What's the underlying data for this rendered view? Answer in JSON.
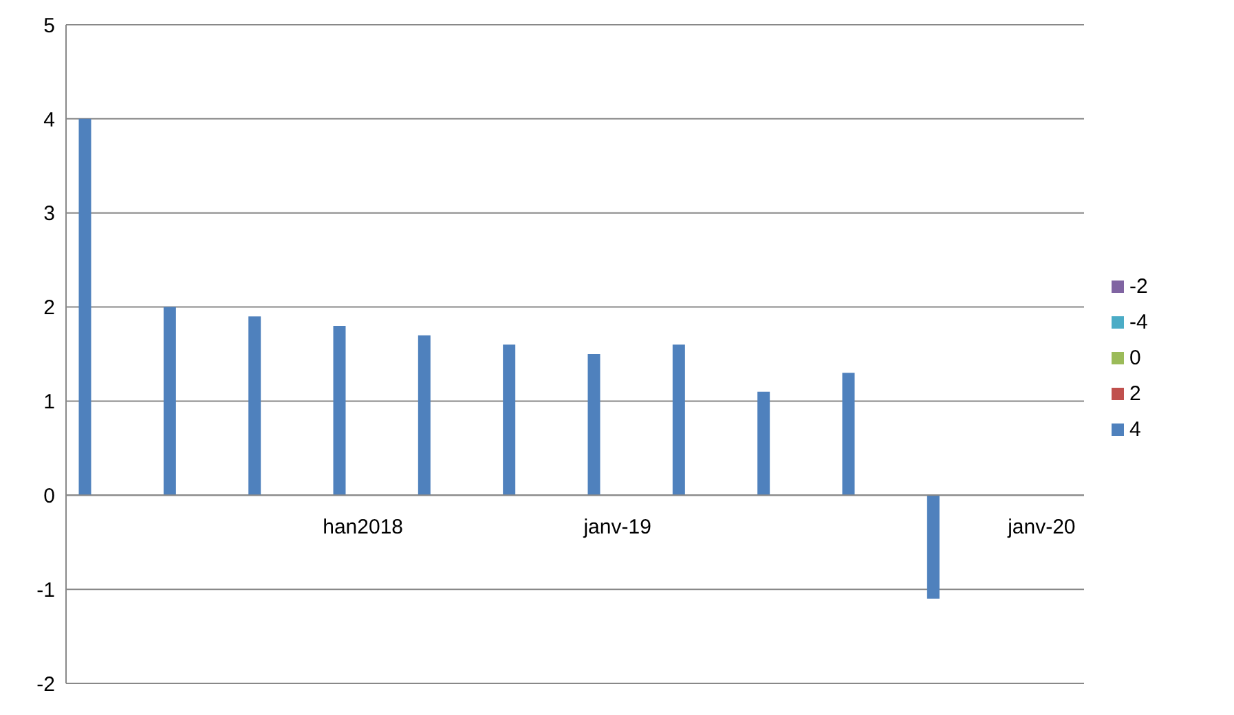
{
  "chart_data": {
    "type": "bar",
    "categories": [
      null,
      null,
      null,
      "han2018",
      null,
      null,
      "janv-19",
      null,
      null,
      null,
      null,
      "janv-20"
    ],
    "series": [
      {
        "name": "4",
        "color": "#4f81bd",
        "values": [
          4,
          2,
          1.9,
          1.8,
          1.7,
          1.6,
          1.5,
          1.6,
          1.1,
          1.3,
          -1.1,
          null
        ]
      },
      {
        "name": "2",
        "color": "#c0504d",
        "values": [
          null,
          null,
          null,
          null,
          null,
          null,
          null,
          null,
          null,
          null,
          null,
          null
        ]
      },
      {
        "name": "0",
        "color": "#9bbb59",
        "values": [
          null,
          null,
          null,
          null,
          null,
          null,
          null,
          null,
          null,
          null,
          null,
          null
        ]
      },
      {
        "name": "-2",
        "color": "#8064a2",
        "values": [
          null,
          null,
          null,
          null,
          null,
          null,
          null,
          null,
          null,
          null,
          null,
          null
        ]
      },
      {
        "name": "-4",
        "color": "#4bacc6",
        "values": [
          null,
          null,
          null,
          null,
          null,
          null,
          null,
          null,
          null,
          null,
          null,
          null
        ]
      }
    ],
    "ylim": [
      -2,
      5
    ],
    "yticks": [
      -2,
      -1,
      0,
      1,
      2,
      3,
      4,
      5
    ],
    "grid": "y",
    "legend": "right"
  }
}
